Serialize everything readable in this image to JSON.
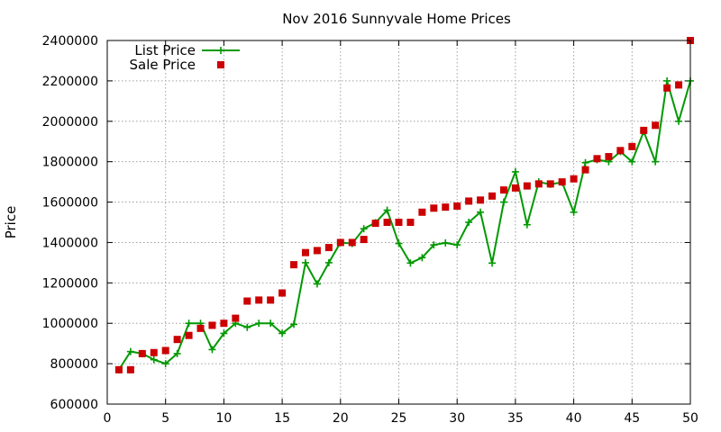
{
  "chart_data": {
    "type": "line",
    "title": "Nov 2016 Sunnyvale Home Prices",
    "xlabel": "",
    "ylabel": "Price",
    "xlim": [
      0,
      50
    ],
    "ylim": [
      600000,
      2400000
    ],
    "x_ticks": [
      0,
      5,
      10,
      15,
      20,
      25,
      30,
      35,
      40,
      45,
      50
    ],
    "y_ticks": [
      600000,
      800000,
      1000000,
      1200000,
      1400000,
      1600000,
      1800000,
      2000000,
      2200000,
      2400000
    ],
    "grid": true,
    "legend_position": "top-left",
    "series": [
      {
        "name": "List Price",
        "style": "line-with-plus-markers",
        "color": "#009900",
        "x": [
          1,
          2,
          3,
          4,
          5,
          6,
          7,
          8,
          9,
          10,
          11,
          12,
          13,
          14,
          15,
          16,
          17,
          18,
          19,
          20,
          21,
          22,
          23,
          24,
          25,
          26,
          27,
          28,
          29,
          30,
          31,
          32,
          33,
          34,
          35,
          36,
          37,
          38,
          39,
          40,
          41,
          42,
          43,
          44,
          45,
          46,
          47,
          48,
          49,
          50
        ],
        "values": [
          770000,
          860000,
          850000,
          820000,
          800000,
          850000,
          1000000,
          1000000,
          870000,
          950000,
          1000000,
          980000,
          1000000,
          1000000,
          950000,
          995000,
          1300000,
          1195000,
          1300000,
          1400000,
          1395000,
          1468000,
          1498000,
          1560000,
          1395000,
          1298000,
          1325000,
          1388000,
          1398000,
          1388000,
          1500000,
          1550000,
          1298000,
          1600000,
          1750000,
          1488000,
          1700000,
          1688000,
          1698000,
          1550000,
          1795000,
          1810000,
          1800000,
          1850000,
          1800000,
          1950000,
          1800000,
          2200000,
          2000000,
          2200000
        ]
      },
      {
        "name": "Sale Price",
        "style": "square-markers",
        "color": "#cc0000",
        "x": [
          1,
          2,
          3,
          4,
          5,
          6,
          7,
          8,
          9,
          10,
          11,
          12,
          13,
          14,
          15,
          16,
          17,
          18,
          19,
          20,
          21,
          22,
          23,
          24,
          25,
          26,
          27,
          28,
          29,
          30,
          31,
          32,
          33,
          34,
          35,
          36,
          37,
          38,
          39,
          40,
          41,
          42,
          43,
          44,
          45,
          46,
          47,
          48,
          49,
          50
        ],
        "values": [
          770000,
          770000,
          850000,
          855000,
          865000,
          920000,
          940000,
          975000,
          990000,
          1000000,
          1025000,
          1110000,
          1115000,
          1115000,
          1150000,
          1290000,
          1350000,
          1360000,
          1375000,
          1400000,
          1400000,
          1415000,
          1495000,
          1500000,
          1500000,
          1500000,
          1550000,
          1570000,
          1575000,
          1580000,
          1605000,
          1610000,
          1630000,
          1660000,
          1670000,
          1680000,
          1690000,
          1690000,
          1700000,
          1715000,
          1760000,
          1815000,
          1825000,
          1855000,
          1875000,
          1955000,
          1980000,
          2165000,
          2180000,
          2400000
        ]
      }
    ]
  }
}
